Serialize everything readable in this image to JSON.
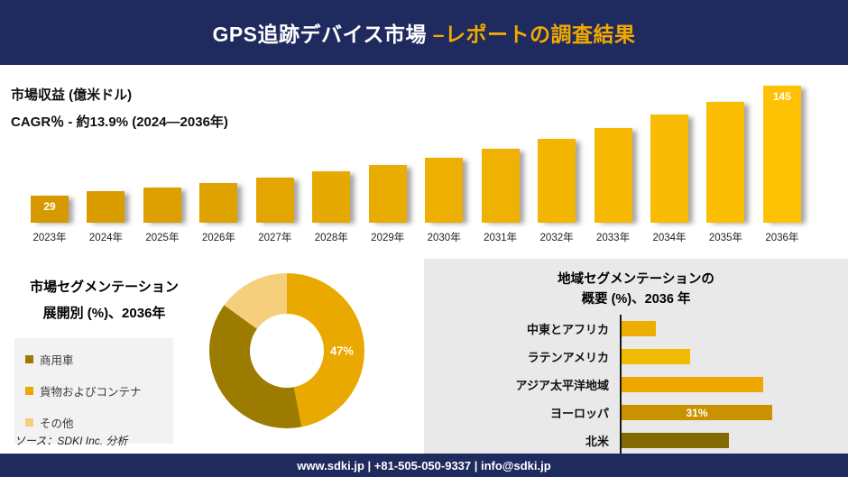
{
  "header": {
    "title_main": "GPS追跡デバイス市場 ",
    "title_accent": "–レポートの調査結果"
  },
  "revenue": {
    "label_line1": "市場収益 (億米ドル)",
    "label_line2": "CAGR％ - 約13.9% (2024―2036年)"
  },
  "segmentation": {
    "title_line1": "市場セグメンテーション",
    "title_line2": "展開別 (%)、2036年",
    "legend": [
      {
        "label": "商用車",
        "color": "#9C7C00"
      },
      {
        "label": "貨物およびコンテナ",
        "color": "#EAA900"
      },
      {
        "label": "その他",
        "color": "#F5CF7B"
      }
    ]
  },
  "region": {
    "title_line1": "地域セグメンテーションの",
    "title_line2": "概要 (%)、2036 年"
  },
  "source": "ソース：SDKI Inc. 分析",
  "footer": "www.sdki.jp | +81-505-050-9337 | info@sdki.jp",
  "colors": {
    "navy": "#1F2A5E",
    "gold_accent": "#F2A900",
    "bar_start": "#D69A00",
    "bar_end": "#FFC103"
  },
  "chart_data": [
    {
      "id": "revenue-by-year",
      "type": "bar",
      "title": "市場収益 (億米ドル)",
      "subtitle": "CAGR％ - 約13.9% (2024―2036年)",
      "categories": [
        "2023年",
        "2024年",
        "2025年",
        "2026年",
        "2027年",
        "2028年",
        "2029年",
        "2030年",
        "2031年",
        "2032年",
        "2033年",
        "2034年",
        "2035年",
        "2036年"
      ],
      "values": [
        29,
        33,
        37,
        42,
        48,
        54,
        61,
        69,
        78,
        89,
        100,
        114,
        128,
        145
      ],
      "value_labels": [
        {
          "index": 0,
          "text": "29"
        },
        {
          "index": 13,
          "text": "145"
        }
      ],
      "xlabel": "",
      "ylabel": "市場収益 (億米ドル)",
      "ylim": [
        0,
        145
      ],
      "grid": false,
      "legend_position": "none"
    },
    {
      "id": "deployment-share",
      "type": "pie",
      "donut": true,
      "title": "市場セグメンテーション 展開別 (%)、2036年",
      "slices": [
        {
          "label": "貨物およびコンテナ",
          "value": 47,
          "color": "#EAA900",
          "show_label": "47%"
        },
        {
          "label": "商用車",
          "value": 38,
          "color": "#9C7C00",
          "show_label": ""
        },
        {
          "label": "その他",
          "value": 15,
          "color": "#F5CF7B",
          "show_label": ""
        }
      ],
      "legend_position": "left"
    },
    {
      "id": "region-share",
      "type": "bar",
      "orientation": "horizontal",
      "title": "地域セグメンテーションの概要 (%)、2036 年",
      "categories": [
        "中東とアフリカ",
        "ラテンアメリカ",
        "アジア太平洋地域",
        "ヨーロッパ",
        "北米"
      ],
      "values": [
        7,
        14,
        29,
        31,
        22
      ],
      "value_labels": [
        {
          "index": 3,
          "text": "31%"
        }
      ],
      "colors": [
        "#EDAE00",
        "#F2BA00",
        "#EFA800",
        "#C89200",
        "#826A00"
      ],
      "xlim": [
        0,
        40
      ],
      "grid": false,
      "legend_position": "none"
    }
  ]
}
